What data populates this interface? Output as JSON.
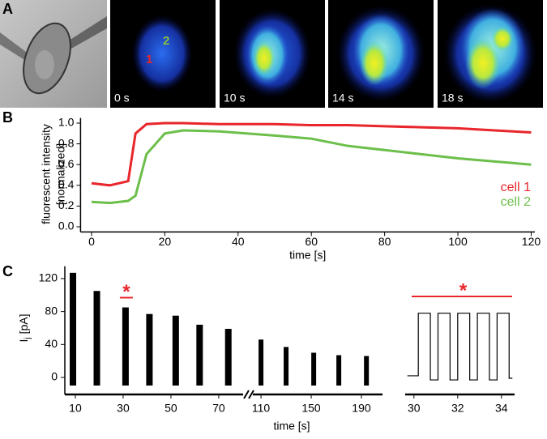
{
  "panel_a": {
    "label": "A",
    "frames": [
      "0 s",
      "10 s",
      "14 s",
      "18 s"
    ],
    "cells": [
      "1",
      "2"
    ]
  },
  "chart_data": [
    {
      "type": "line",
      "label": "B",
      "xlabel": "time [s]",
      "ylabel": [
        "fluorescent intensity",
        "[normalized]"
      ],
      "x": [
        0,
        5,
        10,
        12,
        15,
        20,
        25,
        35,
        50,
        60,
        70,
        80,
        90,
        100,
        110,
        120
      ],
      "series": [
        {
          "name": "cell 1",
          "color": "#e8262b",
          "values": [
            0.42,
            0.4,
            0.44,
            0.9,
            0.99,
            1.0,
            1.0,
            0.99,
            0.99,
            0.98,
            0.98,
            0.97,
            0.96,
            0.95,
            0.93,
            0.91
          ]
        },
        {
          "name": "cell 2",
          "color": "#6cbf4a",
          "values": [
            0.24,
            0.23,
            0.25,
            0.3,
            0.7,
            0.9,
            0.93,
            0.92,
            0.88,
            0.85,
            0.78,
            0.74,
            0.7,
            0.66,
            0.63,
            0.6
          ]
        }
      ],
      "xlim": [
        -3,
        121
      ],
      "ylim": [
        -0.05,
        1.05
      ],
      "xticks": [
        0,
        20,
        40,
        60,
        80,
        100,
        120
      ],
      "yticks": [
        {
          "value": 0,
          "label": "0.0"
        },
        {
          "value": 0.2,
          "label": "0.2"
        },
        {
          "value": 0.4,
          "label": "0.4"
        },
        {
          "value": 0.6,
          "label": "0.6"
        },
        {
          "value": 0.8,
          "label": "0.8"
        },
        {
          "value": 1,
          "label": "1.0"
        }
      ]
    },
    {
      "type": "burst",
      "label": "C",
      "xlabel": "time [s]",
      "ylabel": [
        "I",
        "j",
        "[pA]"
      ],
      "annotation": "*",
      "x": [
        9,
        19,
        31,
        41,
        52,
        62,
        74,
        110,
        130,
        152,
        172,
        194
      ],
      "values": [
        127,
        105,
        85,
        77,
        75,
        64,
        59,
        46,
        37,
        30,
        27,
        26
      ],
      "color": "#000000",
      "xlim_segments": [
        [
          5.6,
          80.2
        ],
        [
          103.5,
          206.8
        ]
      ],
      "ylim": [
        -18,
        135
      ],
      "xticks": [
        10,
        30,
        50,
        70,
        110,
        150,
        190
      ],
      "yticks": [
        0,
        40,
        80,
        120
      ]
    },
    {
      "type": "step",
      "annotation": "*",
      "x": [
        29.7,
        30.2,
        30.2,
        30.75,
        30.75,
        31.1,
        31.1,
        31.65,
        31.65,
        32.0,
        32.0,
        32.55,
        32.55,
        32.9,
        32.9,
        33.45,
        33.45,
        33.8,
        33.8,
        34.35,
        34.35,
        34.5
      ],
      "values": [
        2,
        2,
        78,
        78,
        -3,
        -3,
        78,
        78,
        -3,
        -3,
        78,
        78,
        -3,
        -3,
        78,
        78,
        -3,
        -3,
        78,
        78,
        -1,
        -1
      ],
      "color": "#000000",
      "xlim": [
        29.6,
        34.6
      ],
      "xticks": [
        30,
        32,
        34
      ]
    }
  ]
}
